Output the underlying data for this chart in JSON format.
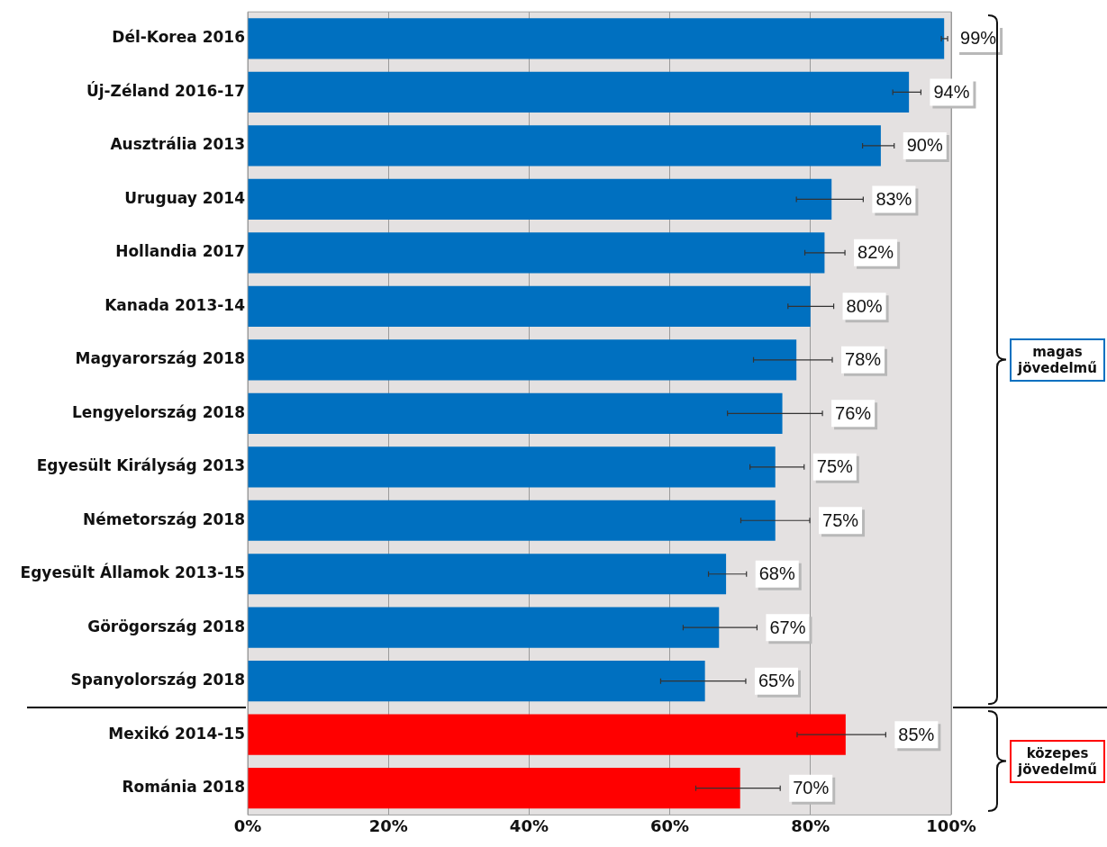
{
  "chart_data": {
    "type": "bar",
    "orientation": "horizontal",
    "categories": [
      "Dél-Korea 2016",
      "Új-Zéland 2016-17",
      "Ausztrália 2013",
      "Uruguay 2014",
      "Hollandia 2017",
      "Kanada 2013-14",
      "Magyarország 2018",
      "Lengyelország 2018",
      "Egyesült Királyság 2013",
      "Németország 2018",
      "Egyesült Államok 2013-15",
      "Görögország 2018",
      "Spanyolország 2018",
      "Mexikó 2014-15",
      "Románia 2018"
    ],
    "values": [
      99,
      94,
      90,
      83,
      82,
      80,
      78,
      76,
      75,
      75,
      68,
      67,
      65,
      85,
      70
    ],
    "value_labels": [
      "99%",
      "94%",
      "90%",
      "83%",
      "82%",
      "80%",
      "78%",
      "76%",
      "75%",
      "75%",
      "68%",
      "67%",
      "65%",
      "85%",
      "70%"
    ],
    "errors": [
      [
        98.6,
        99.5
      ],
      [
        91.7,
        95.7
      ],
      [
        87.4,
        91.9
      ],
      [
        78,
        87.5
      ],
      [
        79.2,
        84.9
      ],
      [
        76.8,
        83.3
      ],
      [
        71.9,
        83.1
      ],
      [
        68.2,
        81.7
      ],
      [
        71.4,
        79.1
      ],
      [
        70.1,
        79.9
      ],
      [
        65.5,
        70.9
      ],
      [
        61.9,
        72.4
      ],
      [
        58.7,
        70.8
      ],
      [
        78.1,
        90.7
      ],
      [
        63.7,
        75.7
      ]
    ],
    "colors": [
      "#0070c0",
      "#0070c0",
      "#0070c0",
      "#0070c0",
      "#0070c0",
      "#0070c0",
      "#0070c0",
      "#0070c0",
      "#0070c0",
      "#0070c0",
      "#0070c0",
      "#0070c0",
      "#0070c0",
      "#ff0000",
      "#ff0000"
    ],
    "xlim": [
      0,
      100
    ],
    "xticks": [
      {
        "value": 0,
        "label": "0%"
      },
      {
        "value": 20,
        "label": "20%"
      },
      {
        "value": 40,
        "label": "40%"
      },
      {
        "value": 60,
        "label": "60%"
      },
      {
        "value": 80,
        "label": "80%"
      },
      {
        "value": 100,
        "label": "100%"
      }
    ],
    "grid": "x",
    "annotations": [
      "magas jövedelmű",
      "közepes jövedelmű"
    ]
  }
}
